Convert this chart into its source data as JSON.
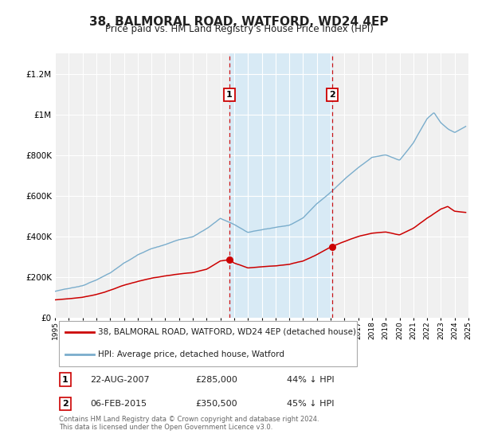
{
  "title": "38, BALMORAL ROAD, WATFORD, WD24 4EP",
  "subtitle": "Price paid vs. HM Land Registry's House Price Index (HPI)",
  "title_fontsize": 11,
  "subtitle_fontsize": 8.5,
  "bg_color": "#ffffff",
  "plot_bg_color": "#f0f0f0",
  "grid_color": "#ffffff",
  "red_line_color": "#cc0000",
  "blue_line_color": "#7aadcc",
  "highlight_bg_color": "#d8eaf5",
  "sale1_x": 2007.64,
  "sale1_y": 285000,
  "sale2_x": 2015.09,
  "sale2_y": 350500,
  "sale1_date": "22-AUG-2007",
  "sale1_price": "£285,000",
  "sale1_hpi": "44% ↓ HPI",
  "sale2_date": "06-FEB-2015",
  "sale2_price": "£350,500",
  "sale2_hpi": "45% ↓ HPI",
  "xlim": [
    1995,
    2025
  ],
  "ylim": [
    0,
    1300000
  ],
  "yticks": [
    0,
    200000,
    400000,
    600000,
    800000,
    1000000,
    1200000
  ],
  "ytick_labels": [
    "£0",
    "£200K",
    "£400K",
    "£600K",
    "£800K",
    "£1M",
    "£1.2M"
  ],
  "legend1": "38, BALMORAL ROAD, WATFORD, WD24 4EP (detached house)",
  "legend2": "HPI: Average price, detached house, Watford",
  "footer": "Contains HM Land Registry data © Crown copyright and database right 2024.\nThis data is licensed under the Open Government Licence v3.0."
}
